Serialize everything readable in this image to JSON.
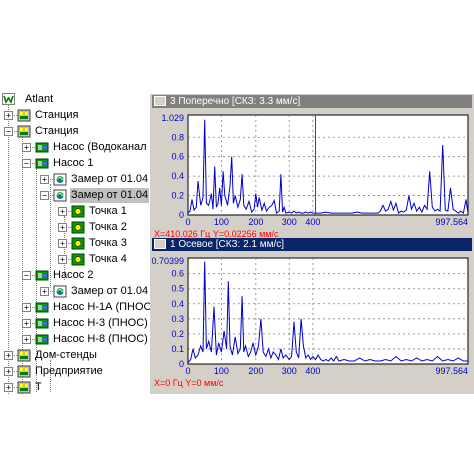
{
  "tree": {
    "root": "Atlant",
    "items": [
      {
        "label": "Станция",
        "expander": "+"
      },
      {
        "label": "Станция",
        "expander": "−"
      },
      {
        "label": "Насос (Водоканал",
        "expander": "+"
      },
      {
        "label": "Насос 1",
        "expander": "−"
      },
      {
        "label": "Замер от 01.04",
        "expander": "+"
      },
      {
        "label": "Замер от 01.04",
        "expander": "−"
      },
      {
        "label": "Точка 1",
        "expander": "+"
      },
      {
        "label": "Точка 2",
        "expander": "+"
      },
      {
        "label": "Точка 3",
        "expander": "+"
      },
      {
        "label": "Точка 4",
        "expander": "+"
      },
      {
        "label": "Насос 2",
        "expander": "−"
      },
      {
        "label": "Замер от 01.04",
        "expander": "+"
      },
      {
        "label": "Насос Н-1А (ПНОС",
        "expander": "+"
      },
      {
        "label": "Насос Н-3 (ПНОС)",
        "expander": "+"
      },
      {
        "label": "Насос Н-8 (ПНОС)",
        "expander": "+"
      },
      {
        "label": "Дом-стенды",
        "expander": "+"
      },
      {
        "label": "Предприятие",
        "expander": "+"
      },
      {
        "label": "Т",
        "expander": "+"
      }
    ]
  },
  "panels": [
    {
      "title": "3 Поперечно [СКЗ:   3.3 мм/с]",
      "title_bg": "#808080",
      "status": "X=410.026 Гц    Y=0.02256 мм/с",
      "cursor_x": 410.026
    },
    {
      "title": "1 Осевое [СКЗ:   2.1 мм/с]",
      "title_bg": "#0a246a",
      "status": "X=0 Гц    Y=0 мм/с",
      "cursor_x": null
    }
  ],
  "chart_data": [
    {
      "type": "line",
      "title": "3 Поперечно [СКЗ:   3.3 мм/с]",
      "ymax_label": "1.029",
      "ylim": [
        0,
        1.029
      ],
      "xlim": [
        0,
        997.564
      ],
      "y_ticks": [
        "0.8",
        "0.6",
        "0.4",
        "0.2",
        "0"
      ],
      "x_ticks": [
        "0",
        "100",
        "200",
        "300",
        "400",
        "997.564"
      ],
      "series": [
        {
          "color": "#0000cc",
          "x": [
            0,
            6,
            12,
            18,
            25,
            30,
            38,
            45,
            50,
            55,
            62,
            70,
            75,
            80,
            85,
            90,
            95,
            100,
            105,
            110,
            118,
            125,
            130,
            135,
            140,
            148,
            155,
            160,
            165,
            172,
            180,
            188,
            195,
            200,
            205,
            210,
            218,
            225,
            232,
            240,
            248,
            255,
            262,
            270,
            275,
            280,
            285,
            290,
            300,
            310,
            320,
            330,
            340,
            350,
            360,
            370,
            380,
            390,
            400,
            415,
            430,
            450,
            470,
            490,
            510,
            530,
            550,
            570,
            590,
            610,
            630,
            650,
            660,
            670,
            680,
            690,
            700,
            710,
            720,
            730,
            740,
            750,
            760,
            770,
            780,
            790,
            800,
            810,
            820,
            830,
            840,
            850,
            860,
            870,
            880,
            890,
            900,
            910,
            920,
            930,
            940,
            950,
            960,
            970,
            980,
            990,
            997.564
          ],
          "y": [
            0.02,
            0.04,
            0.16,
            0.05,
            0.08,
            0.35,
            0.1,
            0.18,
            0.98,
            0.12,
            0.1,
            0.22,
            0.06,
            0.5,
            0.08,
            0.12,
            0.28,
            0.1,
            0.45,
            0.2,
            0.1,
            0.3,
            0.6,
            0.12,
            0.2,
            0.08,
            0.16,
            0.42,
            0.1,
            0.06,
            0.14,
            0.03,
            0.06,
            0.22,
            0.08,
            0.18,
            0.05,
            0.12,
            0.04,
            0.08,
            0.1,
            0.15,
            0.02,
            0.04,
            0.42,
            0.03,
            0.08,
            0.02,
            0.03,
            0.02,
            0.04,
            0.02,
            0.03,
            0.02,
            0.02,
            0.03,
            0.02,
            0.03,
            0.02,
            0.02,
            0.02,
            0.03,
            0.02,
            0.02,
            0.02,
            0.02,
            0.02,
            0.03,
            0.02,
            0.02,
            0.02,
            0.02,
            0.04,
            0.1,
            0.04,
            0.06,
            0.14,
            0.05,
            0.12,
            0.02,
            0.04,
            0.03,
            0.05,
            0.2,
            0.06,
            0.12,
            0.04,
            0.08,
            0.03,
            0.1,
            0.06,
            0.45,
            0.08,
            0.04,
            0.06,
            0.04,
            0.72,
            0.05,
            0.04,
            0.28,
            0.06,
            0.04,
            0.02,
            0.04,
            0.02,
            0.16,
            0.02
          ]
        }
      ]
    },
    {
      "type": "line",
      "title": "1 Осевое [СКЗ:   2.1 мм/с]",
      "ymax_label": "0.70399",
      "ylim": [
        0,
        0.70399
      ],
      "xlim": [
        0,
        997.564
      ],
      "y_ticks": [
        "0.6",
        "0.5",
        "0.4",
        "0.3",
        "0.2",
        "0.1",
        "0"
      ],
      "x_ticks": [
        "0",
        "100",
        "200",
        "300",
        "400",
        "997.564"
      ],
      "series": [
        {
          "color": "#0000cc",
          "x": [
            0,
            8,
            15,
            22,
            30,
            38,
            45,
            50,
            55,
            62,
            70,
            78,
            85,
            92,
            100,
            108,
            115,
            120,
            125,
            132,
            140,
            148,
            155,
            160,
            165,
            170,
            178,
            185,
            192,
            200,
            208,
            215,
            222,
            230,
            238,
            245,
            252,
            260,
            268,
            275,
            282,
            290,
            300,
            310,
            320,
            330,
            340,
            350,
            360,
            370,
            380,
            390,
            400,
            410,
            420,
            430,
            440,
            450,
            460,
            470,
            480,
            490,
            500,
            520,
            540,
            560,
            580,
            600,
            620,
            640,
            660,
            680,
            700,
            720,
            740,
            760,
            780,
            800,
            820,
            840,
            860,
            880,
            900,
            920,
            940,
            960,
            980,
            997.564
          ],
          "y": [
            0.01,
            0.03,
            0.1,
            0.04,
            0.06,
            0.12,
            0.08,
            0.68,
            0.1,
            0.15,
            0.08,
            0.38,
            0.06,
            0.14,
            0.08,
            0.22,
            0.1,
            0.55,
            0.12,
            0.06,
            0.18,
            0.07,
            0.1,
            0.45,
            0.08,
            0.12,
            0.05,
            0.08,
            0.14,
            0.06,
            0.12,
            0.3,
            0.08,
            0.05,
            0.1,
            0.04,
            0.08,
            0.06,
            0.03,
            0.1,
            0.04,
            0.06,
            0.03,
            0.05,
            0.28,
            0.08,
            0.04,
            0.3,
            0.12,
            0.04,
            0.06,
            0.03,
            0.05,
            0.03,
            0.06,
            0.03,
            0.02,
            0.03,
            0.02,
            0.04,
            0.02,
            0.05,
            0.02,
            0.03,
            0.02,
            0.02,
            0.04,
            0.02,
            0.03,
            0.02,
            0.02,
            0.03,
            0.02,
            0.05,
            0.02,
            0.03,
            0.02,
            0.04,
            0.02,
            0.03,
            0.02,
            0.05,
            0.02,
            0.03,
            0.02,
            0.04,
            0.02,
            0.02
          ]
        }
      ]
    }
  ]
}
